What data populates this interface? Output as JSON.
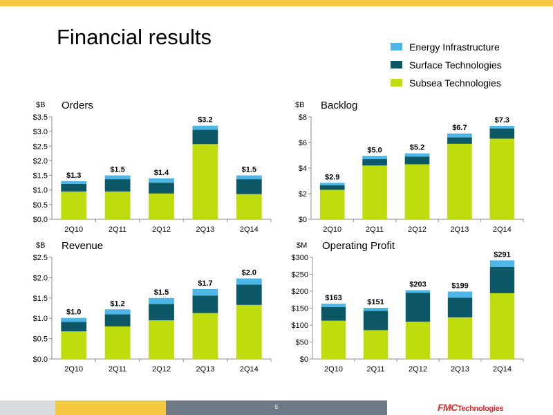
{
  "page": {
    "title": "Financial results",
    "page_number": "5",
    "logo": {
      "fmc": "FMC",
      "technologies": "Technologies"
    }
  },
  "colors": {
    "energy_infrastructure": "#4db6e6",
    "surface_technologies": "#0d5866",
    "subsea_technologies": "#bfdc0e",
    "axis": "#8c8c8c",
    "top_bar": "#f5c842",
    "logo": "#e2262b"
  },
  "legend": [
    {
      "label": "Energy Infrastructure",
      "color": "#4db6e6"
    },
    {
      "label": "Surface Technologies",
      "color": "#0d5866"
    },
    {
      "label": "Subsea Technologies",
      "color": "#bfdc0e"
    }
  ],
  "chart_data": [
    {
      "id": "orders",
      "type": "bar",
      "stacked": true,
      "title": "Orders",
      "unit": "$B",
      "categories": [
        "2Q10",
        "2Q11",
        "2Q12",
        "2Q13",
        "2Q14"
      ],
      "ylim": [
        0,
        3.5
      ],
      "yticks": [
        0,
        0.5,
        1.0,
        1.5,
        2.0,
        2.5,
        3.0,
        3.5
      ],
      "ytick_labels": [
        "$0.0",
        "$0.5",
        "$1.0",
        "$1.5",
        "$2.0",
        "$2.5",
        "$3.0",
        "$3.5"
      ],
      "series": [
        {
          "name": "Subsea Technologies",
          "values": [
            0.95,
            0.95,
            0.88,
            2.57,
            0.86
          ]
        },
        {
          "name": "Surface Technologies",
          "values": [
            0.26,
            0.42,
            0.37,
            0.49,
            0.51
          ]
        },
        {
          "name": "Energy Infrastructure",
          "values": [
            0.09,
            0.13,
            0.15,
            0.14,
            0.13
          ]
        }
      ],
      "total_labels": [
        "$1.3",
        "$1.5",
        "$1.4",
        "$3.2",
        "$1.5"
      ]
    },
    {
      "id": "backlog",
      "type": "bar",
      "stacked": true,
      "title": "Backlog",
      "unit": "$B",
      "categories": [
        "2Q10",
        "2Q11",
        "2Q12",
        "2Q13",
        "2Q14"
      ],
      "ylim": [
        0,
        8
      ],
      "yticks": [
        0,
        2,
        4,
        6,
        8
      ],
      "ytick_labels": [
        "$0",
        "$2",
        "$4",
        "$6",
        "$8"
      ],
      "series": [
        {
          "name": "Subsea Technologies",
          "values": [
            2.3,
            4.2,
            4.3,
            5.9,
            6.3
          ]
        },
        {
          "name": "Surface Technologies",
          "values": [
            0.35,
            0.5,
            0.6,
            0.5,
            0.8
          ]
        },
        {
          "name": "Energy Infrastructure",
          "values": [
            0.2,
            0.25,
            0.25,
            0.3,
            0.2
          ]
        }
      ],
      "total_labels": [
        "$2.9",
        "$5.0",
        "$5.2",
        "$6.7",
        "$7.3"
      ]
    },
    {
      "id": "revenue",
      "type": "bar",
      "stacked": true,
      "title": "Revenue",
      "unit": "$B",
      "categories": [
        "2Q10",
        "2Q11",
        "2Q12",
        "2Q13",
        "2Q14"
      ],
      "ylim": [
        0,
        2.5
      ],
      "yticks": [
        0,
        0.5,
        1.0,
        1.5,
        2.0,
        2.5
      ],
      "ytick_labels": [
        "$0.0",
        "$0.5",
        "$1.0",
        "$1.5",
        "$2.0",
        "$2.5"
      ],
      "series": [
        {
          "name": "Subsea Technologies",
          "values": [
            0.68,
            0.8,
            0.95,
            1.13,
            1.33
          ]
        },
        {
          "name": "Surface Technologies",
          "values": [
            0.23,
            0.3,
            0.4,
            0.43,
            0.5
          ]
        },
        {
          "name": "Energy Infrastructure",
          "values": [
            0.1,
            0.12,
            0.15,
            0.16,
            0.15
          ]
        }
      ],
      "total_labels": [
        "$1.0",
        "$1.2",
        "$1.5",
        "$1.7",
        "$2.0"
      ]
    },
    {
      "id": "operating-profit",
      "type": "bar",
      "stacked": true,
      "title": "Operating Profit",
      "unit": "$M",
      "categories": [
        "2Q10",
        "2Q11",
        "2Q12",
        "2Q13",
        "2Q14"
      ],
      "ylim": [
        0,
        300
      ],
      "yticks": [
        0,
        50,
        100,
        150,
        200,
        250,
        300
      ],
      "ytick_labels": [
        "$0",
        "$50",
        "$100",
        "$150",
        "$200",
        "$250",
        "$300"
      ],
      "series": [
        {
          "name": "Subsea Technologies",
          "values": [
            113,
            85,
            110,
            123,
            194
          ]
        },
        {
          "name": "Surface Technologies",
          "values": [
            40,
            57,
            85,
            58,
            78
          ]
        },
        {
          "name": "Energy Infrastructure",
          "values": [
            10,
            9,
            8,
            18,
            19
          ]
        }
      ],
      "total_labels": [
        "$163",
        "$151",
        "$203",
        "$199",
        "$291"
      ]
    }
  ]
}
